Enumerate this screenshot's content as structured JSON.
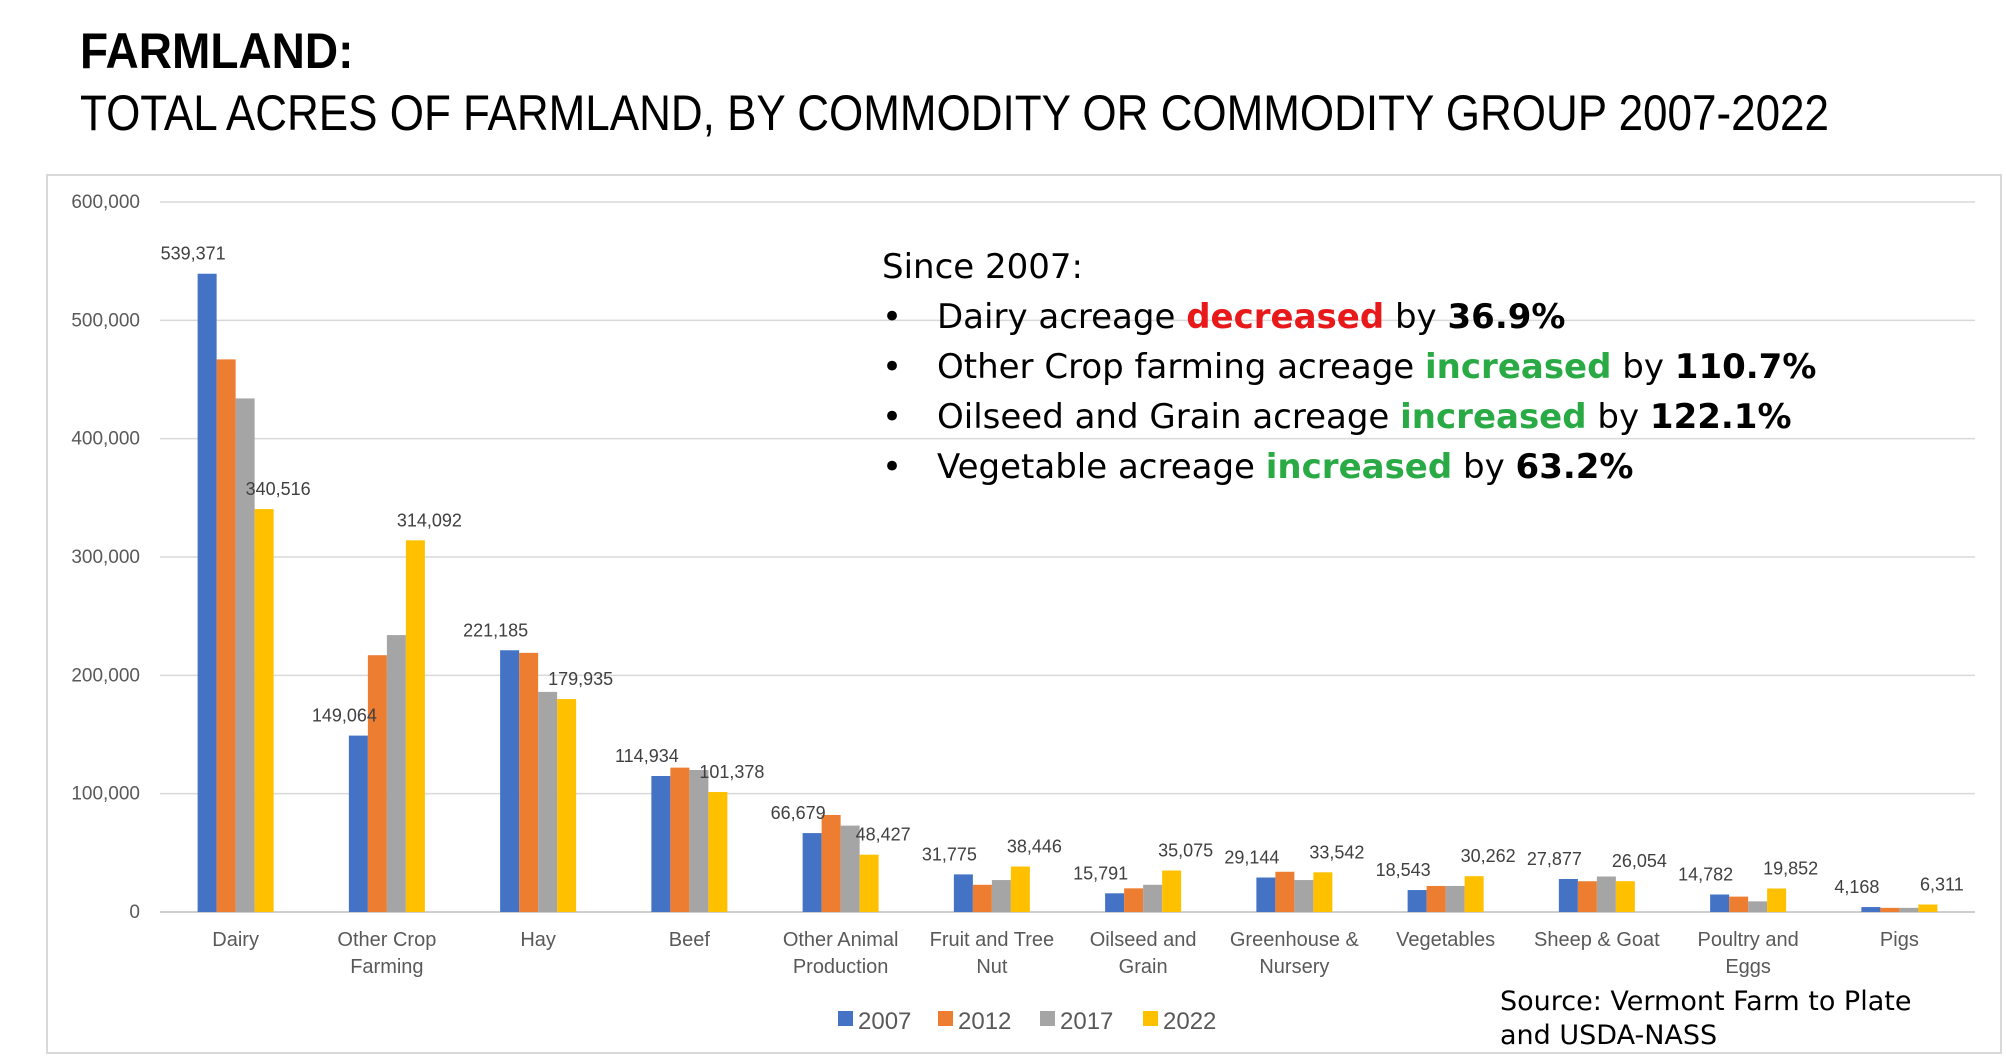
{
  "title": "FARMLAND:",
  "subtitle": "TOTAL ACRES OF FARMLAND, BY COMMODITY OR COMMODITY GROUP 2007-2022",
  "callout": {
    "heading": "Since 2007:",
    "bullet": "•",
    "lines": [
      {
        "pre": "Dairy acreage ",
        "keyword": "decreased",
        "keyword_color": "#e8191a",
        "mid": " by ",
        "value": "36.9%"
      },
      {
        "pre": "Other Crop farming acreage ",
        "keyword": "increased",
        "keyword_color": "#2aaa45",
        "mid": " by ",
        "value": "110.7%"
      },
      {
        "pre": "Oilseed and Grain acreage ",
        "keyword": "increased",
        "keyword_color": "#2aaa45",
        "mid": " by ",
        "value": "122.1%"
      },
      {
        "pre": "Vegetable acreage ",
        "keyword": "increased",
        "keyword_color": "#2aaa45",
        "mid": " by ",
        "value": "63.2%"
      }
    ]
  },
  "source": "Source: Vermont Farm to Plate and USDA-NASS",
  "chart_data": {
    "type": "bar",
    "categories": [
      "Dairy",
      "Other Crop Farming",
      "Hay",
      "Beef",
      "Other Animal Production",
      "Fruit and Tree Nut",
      "Oilseed and Grain",
      "Greenhouse & Nursery",
      "Vegetables",
      "Sheep & Goat",
      "Poultry and Eggs",
      "Pigs"
    ],
    "category_lines": [
      [
        "Dairy"
      ],
      [
        "Other Crop",
        "Farming"
      ],
      [
        "Hay"
      ],
      [
        "Beef"
      ],
      [
        "Other Animal",
        "Production"
      ],
      [
        "Fruit and Tree",
        "Nut"
      ],
      [
        "Oilseed and",
        "Grain"
      ],
      [
        "Greenhouse &",
        "Nursery"
      ],
      [
        "Vegetables"
      ],
      [
        "Sheep & Goat"
      ],
      [
        "Poultry and",
        "Eggs"
      ],
      [
        "Pigs"
      ]
    ],
    "series": [
      {
        "name": "2007",
        "color": "#4472c4",
        "values": [
          539371,
          149064,
          221185,
          114934,
          66679,
          31775,
          15791,
          29144,
          18543,
          27877,
          14782,
          4168
        ]
      },
      {
        "name": "2012",
        "color": "#ed7d31",
        "values": [
          467000,
          217000,
          219000,
          122000,
          82000,
          23000,
          20000,
          34000,
          22000,
          26000,
          13000,
          3500
        ]
      },
      {
        "name": "2017",
        "color": "#a5a5a5",
        "values": [
          434000,
          234000,
          186000,
          120000,
          73000,
          27000,
          23000,
          27000,
          22000,
          30000,
          9000,
          3500
        ]
      },
      {
        "name": "2022",
        "color": "#ffc000",
        "values": [
          340516,
          314092,
          179935,
          101378,
          48427,
          38446,
          35075,
          33542,
          30262,
          26054,
          19852,
          6311
        ]
      }
    ],
    "data_labels": [
      {
        "series": 0,
        "category": 0,
        "text": "539,371"
      },
      {
        "series": 3,
        "category": 0,
        "text": "340,516"
      },
      {
        "series": 0,
        "category": 1,
        "text": "149,064"
      },
      {
        "series": 3,
        "category": 1,
        "text": "314,092"
      },
      {
        "series": 0,
        "category": 2,
        "text": "221,185"
      },
      {
        "series": 3,
        "category": 2,
        "text": "179,935"
      },
      {
        "series": 0,
        "category": 3,
        "text": "114,934"
      },
      {
        "series": 3,
        "category": 3,
        "text": "101,378"
      },
      {
        "series": 0,
        "category": 4,
        "text": "66,679"
      },
      {
        "series": 3,
        "category": 4,
        "text": "48,427"
      },
      {
        "series": 0,
        "category": 5,
        "text": "31,775"
      },
      {
        "series": 3,
        "category": 5,
        "text": "38,446"
      },
      {
        "series": 0,
        "category": 6,
        "text": "15,791"
      },
      {
        "series": 3,
        "category": 6,
        "text": "35,075"
      },
      {
        "series": 0,
        "category": 7,
        "text": "29,144"
      },
      {
        "series": 3,
        "category": 7,
        "text": "33,542"
      },
      {
        "series": 0,
        "category": 8,
        "text": "18,543"
      },
      {
        "series": 3,
        "category": 8,
        "text": "30,262"
      },
      {
        "series": 0,
        "category": 9,
        "text": "27,877"
      },
      {
        "series": 3,
        "category": 9,
        "text": "26,054"
      },
      {
        "series": 0,
        "category": 10,
        "text": "14,782"
      },
      {
        "series": 3,
        "category": 10,
        "text": "19,852"
      },
      {
        "series": 0,
        "category": 11,
        "text": "4,168"
      },
      {
        "series": 3,
        "category": 11,
        "text": "6,311"
      }
    ],
    "yticks": [
      0,
      100000,
      200000,
      300000,
      400000,
      500000,
      600000
    ],
    "ytick_labels": [
      "0",
      "100,000",
      "200,000",
      "300,000",
      "400,000",
      "500,000",
      "600,000"
    ],
    "ylim": [
      0,
      600000
    ],
    "grid": true,
    "legend_position": "bottom-center"
  }
}
